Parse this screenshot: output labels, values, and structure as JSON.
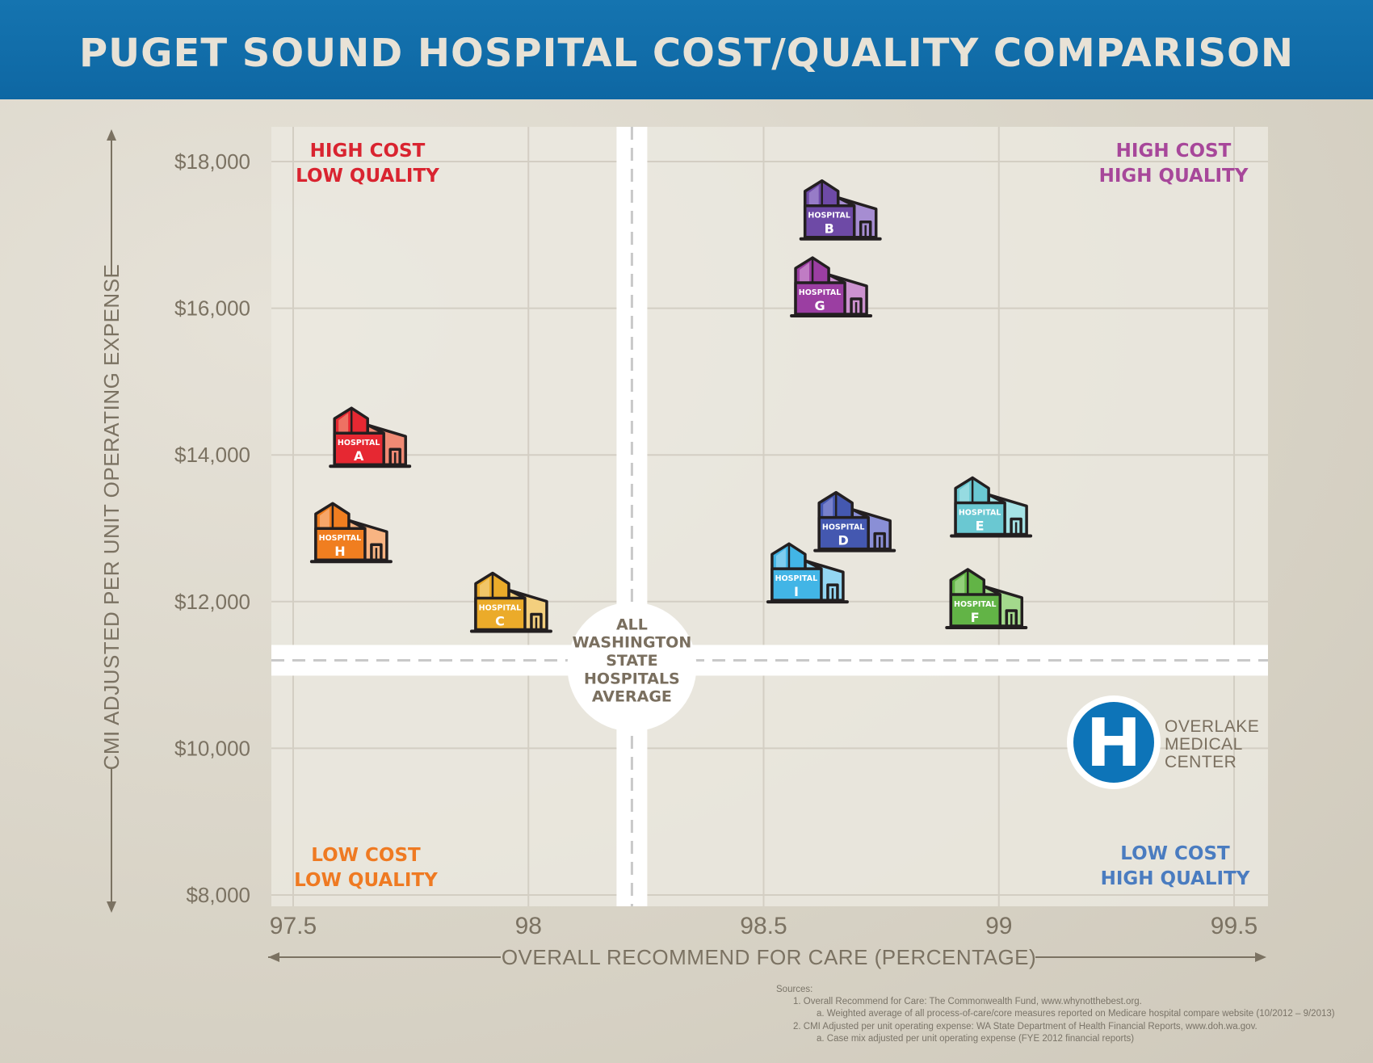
{
  "title": "PUGET SOUND HOSPITAL COST/QUALITY COMPARISON",
  "chart_data": {
    "type": "scatter",
    "xlabel": "OVERALL RECOMMEND FOR CARE (PERCENTAGE)",
    "ylabel": "CMI ADJUSTED PER UNIT OPERATING EXPENSE",
    "xlim": [
      97.5,
      99.5
    ],
    "ylim": [
      8000,
      18000
    ],
    "xticks": [
      "97.5",
      "98",
      "98.5",
      "99",
      "99.5"
    ],
    "yticks": [
      "$18,000",
      "$16,000",
      "$14,000",
      "$12,000",
      "$10,000",
      "$8,000"
    ],
    "average": {
      "x": 98.22,
      "y": 11200,
      "label_lines": [
        "ALL",
        "WASHINGTON",
        "STATE",
        "HOSPITALS",
        "AVERAGE"
      ]
    },
    "quadrant_labels": {
      "top_left": [
        "HIGH COST",
        "LOW QUALITY"
      ],
      "top_right": [
        "HIGH COST",
        "HIGH QUALITY"
      ],
      "bottom_left": [
        "LOW COST",
        "LOW QUALITY"
      ],
      "bottom_right": [
        "LOW COST",
        "HIGH QUALITY"
      ]
    },
    "quadrant_colors": {
      "top_left": "#d92430",
      "top_right": "#a7479a",
      "bottom_left": "#ef7a22",
      "bottom_right": "#4a7cc0"
    },
    "points": [
      {
        "label": "HOSPITAL",
        "letter": "A",
        "x": 97.66,
        "y": 14000,
        "color": "#e62832",
        "light": "#f08a74"
      },
      {
        "label": "HOSPITAL",
        "letter": "B",
        "x": 98.66,
        "y": 17100,
        "color": "#6e4aa6",
        "light": "#a68dd2"
      },
      {
        "label": "HOSPITAL",
        "letter": "C",
        "x": 97.96,
        "y": 11750,
        "color": "#ebab2a",
        "light": "#f3cf7e"
      },
      {
        "label": "HOSPITAL",
        "letter": "D",
        "x": 98.69,
        "y": 12850,
        "color": "#4458b0",
        "light": "#8a8fd6"
      },
      {
        "label": "HOSPITAL",
        "letter": "E",
        "x": 98.98,
        "y": 13050,
        "color": "#6ac8d2",
        "light": "#a5e2e5"
      },
      {
        "label": "HOSPITAL",
        "letter": "F",
        "x": 98.97,
        "y": 11800,
        "color": "#62b446",
        "light": "#a3d98c"
      },
      {
        "label": "HOSPITAL",
        "letter": "G",
        "x": 98.64,
        "y": 16050,
        "color": "#9b3ea2",
        "light": "#cc92cf"
      },
      {
        "label": "HOSPITAL",
        "letter": "H",
        "x": 97.62,
        "y": 12700,
        "color": "#f07e20",
        "light": "#f8b482"
      },
      {
        "label": "HOSPITAL",
        "letter": "I",
        "x": 98.59,
        "y": 12150,
        "color": "#42b5e6",
        "light": "#93d6f2"
      }
    ],
    "highlight": {
      "name_lines": [
        "OVERLAKE",
        "MEDICAL",
        "CENTER"
      ],
      "symbol": "H",
      "color": "#0d74b8"
    },
    "grid": true
  },
  "sources": {
    "heading": "Sources:",
    "lines": [
      "1.     Overall Recommend for Care: The Commonwealth Fund, www.whynotthebest.org.",
      "a. Weighted average of all process-of-care/core measures reported on Medicare hospital compare website (10/2012 – 9/2013)",
      "2.     CMI Adjusted per unit operating expense: WA State Department of Health Financial Reports, www.doh.wa.gov.",
      "a. Case mix adjusted per unit operating expense (FYE 2012 financial reports)"
    ]
  }
}
